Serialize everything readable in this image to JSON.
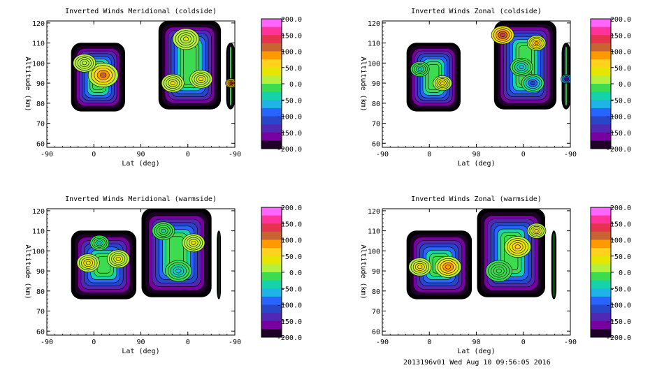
{
  "colorbar": {
    "labels": [
      "200.0",
      "150.0",
      "100.0",
      "50.0",
      "0.0",
      "-50.0",
      "-100.0",
      "-150.0",
      "-200.0"
    ],
    "values": [
      200,
      150,
      100,
      50,
      0,
      -50,
      -100,
      -150,
      -200
    ],
    "colors": [
      "#ff66ff",
      "#ff3399",
      "#e6334d",
      "#c86432",
      "#ff9900",
      "#ffd21e",
      "#e6e600",
      "#b4f03c",
      "#3cdc50",
      "#14d2aa",
      "#1eb4e6",
      "#2864ff",
      "#2846c8",
      "#5028b4",
      "#7800a0",
      "#1e0028"
    ]
  },
  "footer": "2013196v01 Wed Aug 10 09:56:05 2016",
  "chart_data": [
    {
      "type": "heatmap",
      "title": "Inverted Winds Meridional (coldside)",
      "xlabel": "Lat (deg)",
      "ylabel": "Altitude (km)",
      "xticks": [
        "-90",
        "0",
        "90",
        "0",
        "-90"
      ],
      "yticks": [
        60,
        70,
        80,
        90,
        100,
        110,
        120
      ],
      "ylim": [
        58,
        121
      ],
      "zlim": [
        -200,
        200
      ],
      "panels": [
        {
          "x_range": [
            0.13,
            0.415
          ],
          "y_range": [
            76,
            110
          ],
          "blobs": [
            {
              "cx": 0.3,
              "cy": 94,
              "r": 0.08,
              "v": 110
            },
            {
              "cx": 0.2,
              "cy": 100,
              "r": 0.06,
              "v": 20
            }
          ]
        },
        {
          "x_range": [
            0.595,
            0.925
          ],
          "y_range": [
            77,
            121
          ],
          "blobs": [
            {
              "cx": 0.67,
              "cy": 90,
              "r": 0.06,
              "v": 35
            },
            {
              "cx": 0.82,
              "cy": 92,
              "r": 0.06,
              "v": 40
            },
            {
              "cx": 0.74,
              "cy": 112,
              "r": 0.07,
              "v": 30
            }
          ]
        },
        {
          "x_range": [
            0.955,
            1.0
          ],
          "y_range": [
            77,
            110
          ],
          "blobs": [
            {
              "cx": 0.98,
              "cy": 90,
              "r": 0.03,
              "v": 130
            }
          ]
        }
      ]
    },
    {
      "type": "heatmap",
      "title": "Inverted Winds Zonal (coldside)",
      "xlabel": "Lat (deg)",
      "ylabel": "Altitude (km)",
      "xticks": [
        "-90",
        "0",
        "90",
        "0",
        "-90"
      ],
      "yticks": [
        60,
        70,
        80,
        90,
        100,
        110,
        120
      ],
      "ylim": [
        58,
        121
      ],
      "zlim": [
        -200,
        200
      ],
      "panels": [
        {
          "x_range": [
            0.13,
            0.415
          ],
          "y_range": [
            76,
            110
          ],
          "blobs": [
            {
              "cx": 0.32,
              "cy": 90,
              "r": 0.05,
              "v": 55
            },
            {
              "cx": 0.2,
              "cy": 97,
              "r": 0.05,
              "v": -40
            }
          ]
        },
        {
          "x_range": [
            0.595,
            0.925
          ],
          "y_range": [
            77,
            121
          ],
          "blobs": [
            {
              "cx": 0.64,
              "cy": 114,
              "r": 0.06,
              "v": 130
            },
            {
              "cx": 0.8,
              "cy": 90,
              "r": 0.06,
              "v": -110
            },
            {
              "cx": 0.74,
              "cy": 98,
              "r": 0.06,
              "v": -60
            },
            {
              "cx": 0.82,
              "cy": 110,
              "r": 0.05,
              "v": 80
            }
          ]
        },
        {
          "x_range": [
            0.955,
            1.0
          ],
          "y_range": [
            77,
            110
          ],
          "blobs": [
            {
              "cx": 0.98,
              "cy": 92,
              "r": 0.03,
              "v": -160
            }
          ]
        }
      ]
    },
    {
      "type": "heatmap",
      "title": "Inverted Winds Meridional (warmside)",
      "xlabel": "Lat (deg)",
      "ylabel": "Altitude (km)",
      "xticks": [
        "-90",
        "0",
        "90",
        "0",
        "-90"
      ],
      "yticks": [
        60,
        70,
        80,
        90,
        100,
        110,
        120
      ],
      "ylim": [
        58,
        121
      ],
      "zlim": [
        -200,
        200
      ],
      "panels": [
        {
          "x_range": [
            0.13,
            0.475
          ],
          "y_range": [
            76,
            110
          ],
          "blobs": [
            {
              "cx": 0.22,
              "cy": 94,
              "r": 0.06,
              "v": 50
            },
            {
              "cx": 0.38,
              "cy": 96,
              "r": 0.06,
              "v": 40
            },
            {
              "cx": 0.28,
              "cy": 104,
              "r": 0.05,
              "v": -40
            }
          ]
        },
        {
          "x_range": [
            0.505,
            0.875
          ],
          "y_range": [
            77,
            121
          ],
          "blobs": [
            {
              "cx": 0.78,
              "cy": 104,
              "r": 0.06,
              "v": 40
            },
            {
              "cx": 0.62,
              "cy": 110,
              "r": 0.06,
              "v": -30
            },
            {
              "cx": 0.7,
              "cy": 90,
              "r": 0.07,
              "v": -50
            }
          ]
        },
        {
          "x_range": [
            0.905,
            0.925
          ],
          "y_range": [
            76,
            110
          ],
          "blobs": []
        }
      ]
    },
    {
      "type": "heatmap",
      "title": "Inverted Winds Zonal (warmside)",
      "xlabel": "Lat (deg)",
      "ylabel": "Altitude (km)",
      "xticks": [
        "-90",
        "0",
        "90",
        "0",
        "-90"
      ],
      "yticks": [
        60,
        70,
        80,
        90,
        100,
        110,
        120
      ],
      "ylim": [
        58,
        121
      ],
      "zlim": [
        -200,
        200
      ],
      "panels": [
        {
          "x_range": [
            0.13,
            0.475
          ],
          "y_range": [
            76,
            110
          ],
          "blobs": [
            {
              "cx": 0.35,
              "cy": 92,
              "r": 0.07,
              "v": 100
            },
            {
              "cx": 0.2,
              "cy": 92,
              "r": 0.06,
              "v": 60
            }
          ]
        },
        {
          "x_range": [
            0.505,
            0.865
          ],
          "y_range": [
            77,
            121
          ],
          "blobs": [
            {
              "cx": 0.72,
              "cy": 102,
              "r": 0.07,
              "v": 70
            },
            {
              "cx": 0.82,
              "cy": 110,
              "r": 0.05,
              "v": 50
            },
            {
              "cx": 0.62,
              "cy": 90,
              "r": 0.07,
              "v": -20
            }
          ]
        },
        {
          "x_range": [
            0.9,
            0.925
          ],
          "y_range": [
            76,
            110
          ],
          "blobs": []
        }
      ]
    }
  ]
}
